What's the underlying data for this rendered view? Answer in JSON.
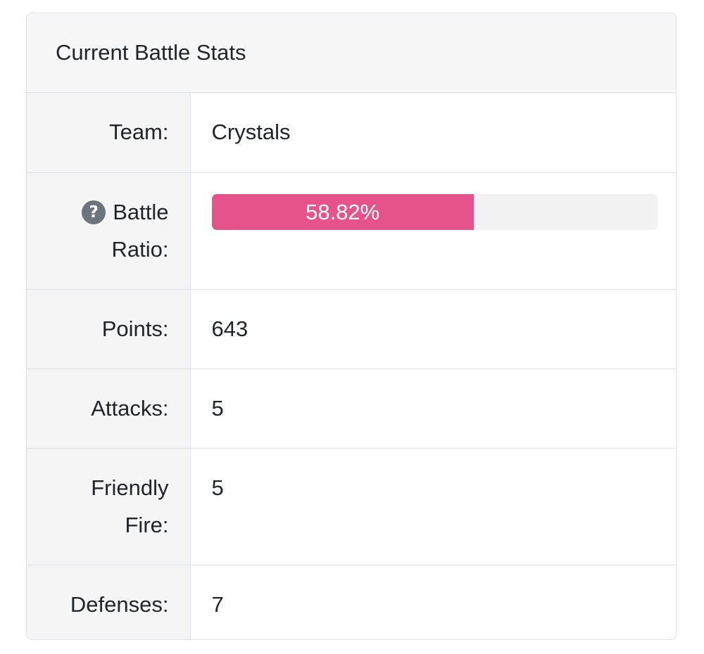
{
  "card": {
    "title": "Current Battle Stats"
  },
  "rows": {
    "team": {
      "label": "Team:",
      "value": "Crystals"
    },
    "battle_ratio": {
      "label_line1": "Battle",
      "label_line2": "Ratio:",
      "help_glyph": "?",
      "value_text": "58.82%",
      "value_fraction": 0.5882,
      "bar_color": "#e5538a"
    },
    "points": {
      "label": "Points:",
      "value": "643"
    },
    "attacks": {
      "label": "Attacks:",
      "value": "5"
    },
    "friendly_fire": {
      "label_line1": "Friendly",
      "label_line2": "Fire:",
      "value": "5"
    },
    "defenses": {
      "label": "Defenses:",
      "value": "7"
    }
  },
  "icons": {
    "help": "question-circle-icon"
  }
}
